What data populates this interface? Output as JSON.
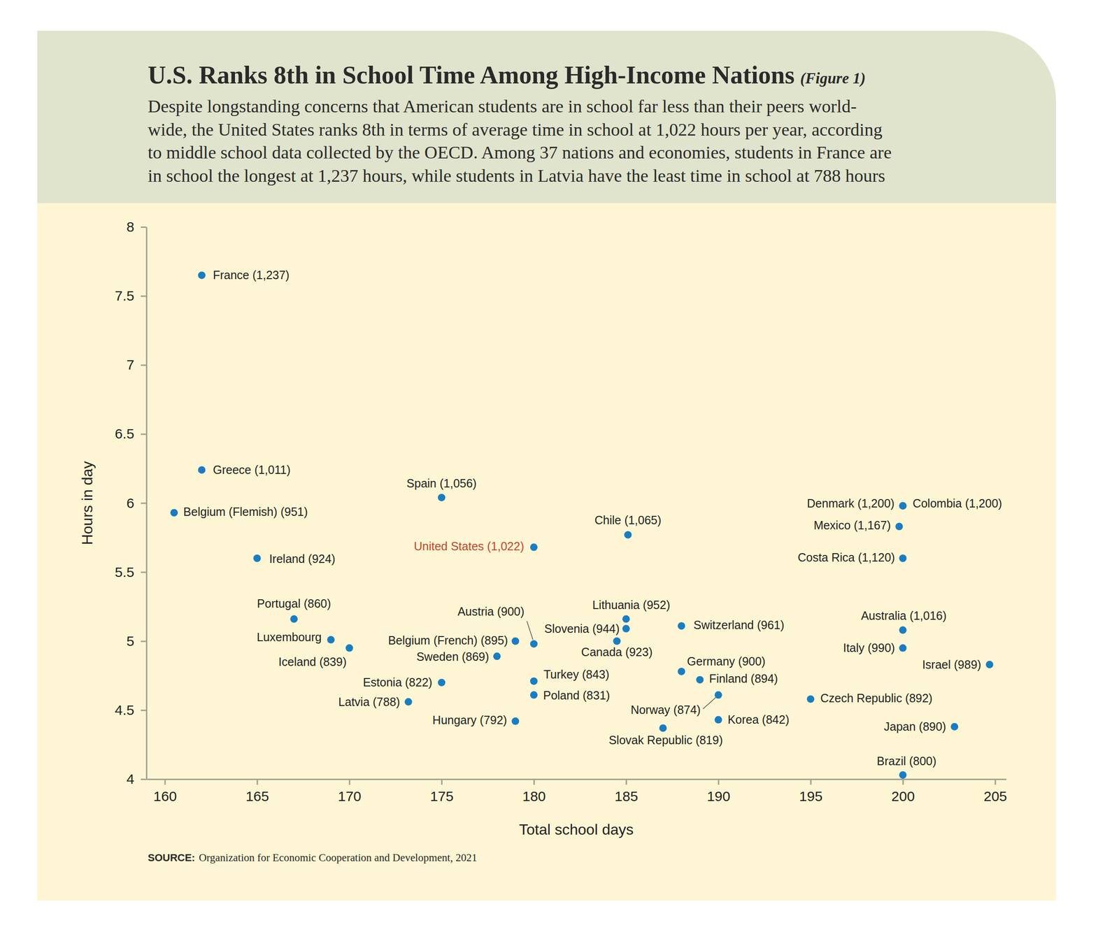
{
  "chart_data": {
    "type": "scatter",
    "title": "U.S. Ranks 8th in School Time Among High-Income Nations",
    "title_note": "(Figure 1)",
    "subtitle": [
      "Despite longstanding concerns that American students are in school far less than their peers world-",
      "wide, the United States ranks 8th in terms of average time in school at 1,022 hours per year, according",
      "to middle school data collected by the OECD. Among 37 nations and economies, students in France are",
      "in school the longest at 1,237 hours, while students in Latvia have the least time in school at 788 hours"
    ],
    "x_label": "Total school days",
    "y_label": "Hours in day",
    "source_label": "SOURCE:",
    "source": "Organization for Economic Cooperation and Development, 2021",
    "labels": [
      "France (1,237)",
      "Greece (1,011)",
      "Belgium (Flemish) (951)",
      "Ireland (924)",
      "Portugal (860)",
      "Luxembourg",
      "Iceland (839)",
      "Spain (1,056)",
      "Estonia (822)",
      "Latvia (788)",
      "Sweden (869)",
      "Belgium (French) (895)",
      "Austria (900)",
      "United States (1,022)",
      "Turkey (843)",
      "Poland (831)",
      "Hungary (792)",
      "Chile (1,065)",
      "Lithuania (952)",
      "Slovenia (944)",
      "Canada (923)",
      "Slovak Republic (819)",
      "Switzerland (961)",
      "Germany (900)",
      "Finland (894)",
      "Norway (874)",
      "Korea (842)",
      "Czech Republic (892)",
      "Denmark (1,200)",
      "Colombia (1,200)",
      "Mexico (1,167)",
      "Costa Rica (1,120)",
      "Australia (1,016)",
      "Italy (990)",
      "Israel (989)",
      "Japan (890)",
      "Brazil (800)"
    ],
    "x": [
      162,
      162,
      160.5,
      165,
      167,
      169,
      170,
      175,
      175,
      173.2,
      178,
      179,
      180,
      180,
      180,
      180,
      179,
      185.1,
      185,
      185,
      184.5,
      187,
      188,
      188,
      189,
      190,
      190,
      195,
      200,
      200,
      199.8,
      200,
      200,
      200,
      204.7,
      202.8,
      200
    ],
    "values": [
      7.65,
      6.24,
      5.93,
      5.6,
      5.16,
      5.01,
      4.95,
      6.04,
      4.7,
      4.56,
      4.89,
      5.0,
      4.98,
      5.68,
      4.71,
      4.61,
      4.42,
      5.77,
      5.16,
      5.09,
      5.0,
      4.37,
      5.11,
      4.78,
      4.72,
      4.61,
      4.43,
      4.58,
      5.98,
      5.98,
      5.83,
      5.6,
      5.08,
      4.95,
      4.83,
      4.38,
      4.03
    ],
    "color": "#1a7dc0",
    "xlim": [
      159,
      205.6
    ],
    "xticks": [
      160,
      165,
      170,
      175,
      180,
      185,
      190,
      195,
      200,
      205
    ],
    "ylim": [
      4,
      8
    ],
    "yticks": [
      4,
      4.5,
      5,
      5.5,
      6,
      6.5,
      7,
      7.5,
      8
    ],
    "grid": false
  }
}
